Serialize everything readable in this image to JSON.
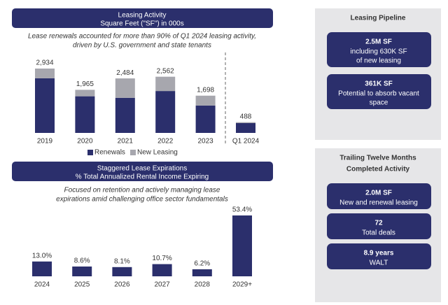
{
  "chart_data": [
    {
      "type": "stacked-bar",
      "title": "Leasing Activity",
      "subtitle": "Square Feet (\"SF\") in 000s",
      "caption": [
        "Lease renewals accounted for more than 90% of Q1 2024 leasing activity,",
        "driven by U.S. government and state tenants"
      ],
      "categories": [
        "2019",
        "2020",
        "2021",
        "2022",
        "2023",
        "Q1 2024"
      ],
      "series": [
        {
          "name": "Renewals",
          "color": "#2b2f6c",
          "values": [
            2490,
            1670,
            1600,
            1910,
            1250,
            450
          ]
        },
        {
          "name": "New Leasing",
          "color": "#a7a7ae",
          "values": [
            444,
            295,
            884,
            652,
            448,
            38
          ]
        }
      ],
      "totals": [
        2934,
        1965,
        2484,
        2562,
        1698,
        488
      ],
      "total_labels": [
        "2,934",
        "1,965",
        "2,484",
        "2,562",
        "1,698",
        "488"
      ]
    },
    {
      "type": "bar",
      "title": "Staggered Lease Expirations",
      "subtitle": "% Total Annualized Rental Income Expiring",
      "caption": [
        "Focused on retention and actively managing lease",
        "expirations amid challenging office sector fundamentals"
      ],
      "categories": [
        "2024",
        "2025",
        "2026",
        "2027",
        "2028",
        "2029+"
      ],
      "color": "#2b2f6c",
      "values": [
        13.0,
        8.6,
        8.1,
        10.7,
        6.2,
        53.4
      ],
      "value_labels": [
        "13.0%",
        "8.6%",
        "8.1%",
        "10.7%",
        "6.2%",
        "53.4%"
      ]
    }
  ],
  "panels": [
    {
      "title": [
        "Leasing Pipeline"
      ],
      "boxes": [
        {
          "value": "2.5M SF",
          "lines": [
            "including 630K SF",
            "of new leasing"
          ]
        },
        {
          "value": "361K SF",
          "lines": [
            "Potential to absorb vacant",
            "space"
          ]
        }
      ]
    },
    {
      "title": [
        "Trailing Twelve Months",
        "Completed Activity"
      ],
      "boxes": [
        {
          "value": "2.0M SF",
          "lines": [
            "New and renewal leasing"
          ]
        },
        {
          "value": "72",
          "lines": [
            "Total deals"
          ]
        },
        {
          "value": "8.9 years",
          "lines": [
            "WALT"
          ]
        }
      ]
    }
  ]
}
